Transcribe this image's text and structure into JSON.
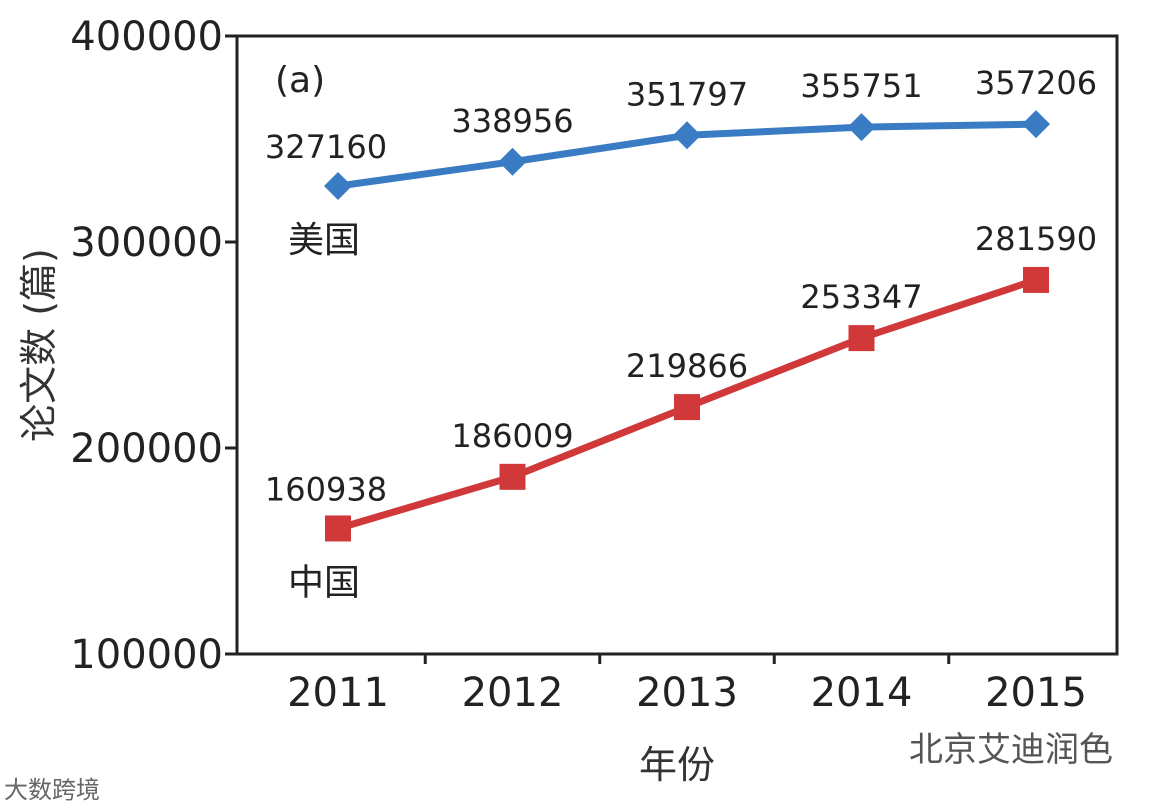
{
  "chart_data": {
    "type": "line",
    "panel_label": "(a)",
    "categories": [
      "2011",
      "2012",
      "2013",
      "2014",
      "2015"
    ],
    "ylabel": "论文数 (篇)",
    "xlabel": "年份",
    "ylim": [
      100000,
      400000
    ],
    "yticks": [
      100000,
      200000,
      300000,
      400000
    ],
    "ytick_labels": [
      "100000",
      "200000",
      "300000",
      "400000"
    ],
    "series": [
      {
        "name": "美国",
        "color": "#3a7cc3",
        "marker": "diamond",
        "values": [
          327160,
          338956,
          351797,
          355751,
          357206
        ],
        "labels": [
          "327160",
          "338956",
          "351797",
          "355751",
          "357206"
        ]
      },
      {
        "name": "中国",
        "color": "#d0383a",
        "marker": "square",
        "values": [
          160938,
          186009,
          219866,
          253347,
          281590
        ],
        "labels": [
          "160938",
          "186009",
          "219866",
          "253347",
          "281590"
        ]
      }
    ]
  },
  "watermarks": {
    "right": "北京艾迪润色",
    "left": "大数跨境"
  }
}
